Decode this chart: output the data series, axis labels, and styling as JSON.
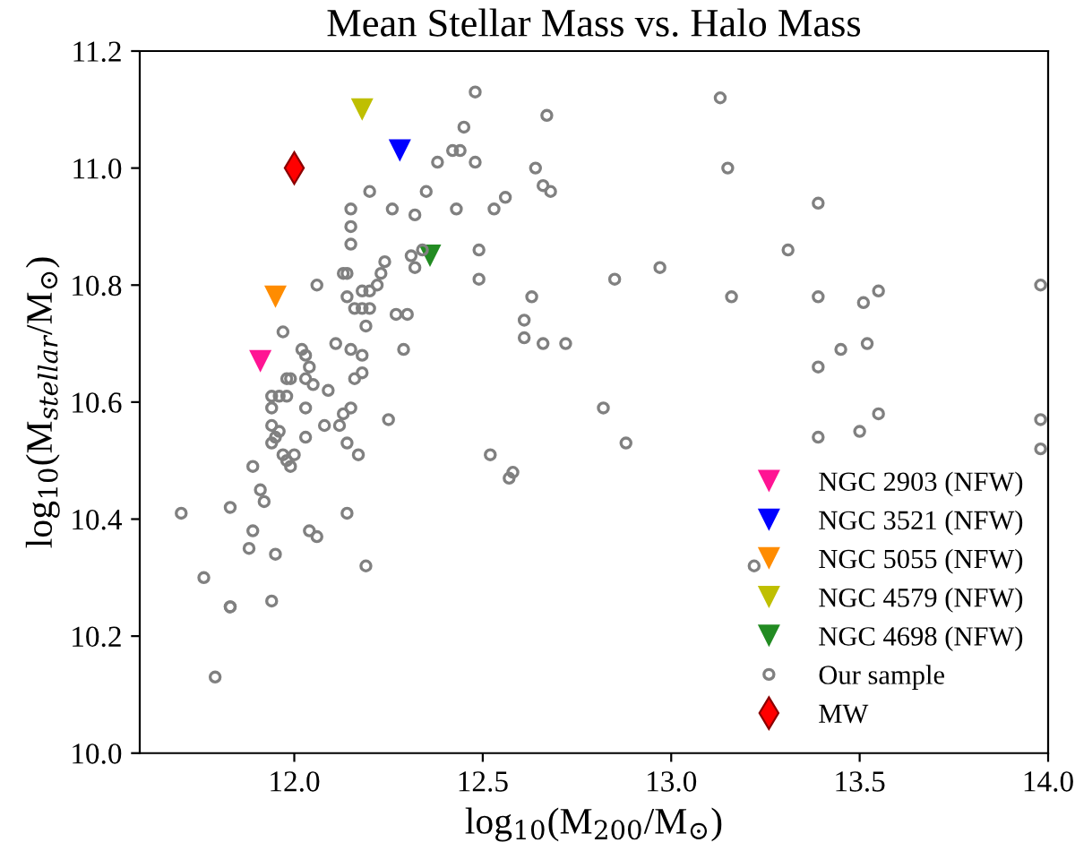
{
  "chart_data": {
    "type": "scatter",
    "title": "Mean Stellar Mass vs. Halo Mass",
    "xlabel": "log$_{10}$(M$_{200}$/M$_{⊙}$)",
    "ylabel": "log$_{10}$(M$_{stellar}$/M$_{⊙}$)",
    "xlim": [
      11.59,
      14.0
    ],
    "ylim": [
      10.0,
      11.2
    ],
    "xticks": [
      {
        "value": 12.0,
        "label": "12.0"
      },
      {
        "value": 12.5,
        "label": "12.5"
      },
      {
        "value": 13.0,
        "label": "13.0"
      },
      {
        "value": 13.5,
        "label": "13.5"
      },
      {
        "value": 14.0,
        "label": "14.0"
      }
    ],
    "yticks": [
      {
        "value": 10.0,
        "label": "10.0"
      },
      {
        "value": 10.2,
        "label": "10.2"
      },
      {
        "value": 10.4,
        "label": "10.4"
      },
      {
        "value": 10.6,
        "label": "10.6"
      },
      {
        "value": 10.8,
        "label": "10.8"
      },
      {
        "value": 11.0,
        "label": "11.0"
      },
      {
        "value": 11.2,
        "label": "11.2"
      }
    ],
    "grid": false,
    "legend": "bottom right",
    "series": [
      {
        "name": "NGC 2903 (NFW)",
        "color": "#ff1493",
        "marker": "triangle",
        "x": [
          11.91
        ],
        "values": [
          10.67
        ]
      },
      {
        "name": "NGC 3521 (NFW)",
        "color": "#0000ff",
        "marker": "triangle",
        "x": [
          12.28
        ],
        "values": [
          11.03
        ]
      },
      {
        "name": "NGC 5055 (NFW)",
        "color": "#ff8c00",
        "marker": "triangle",
        "x": [
          11.95
        ],
        "values": [
          10.78
        ]
      },
      {
        "name": "NGC 4579 (NFW)",
        "color": "#bfbf00",
        "marker": "triangle",
        "x": [
          12.18
        ],
        "values": [
          11.1
        ]
      },
      {
        "name": "NGC 4698 (NFW)",
        "color": "#228b22",
        "marker": "triangle",
        "x": [
          12.36
        ],
        "values": [
          10.85
        ]
      },
      {
        "name": "Our sample",
        "color": "#808080",
        "marker": "circle",
        "x": [
          12.45,
          12.38,
          12.42,
          12.44,
          12.2,
          12.35,
          12.15,
          12.26,
          12.32,
          12.43,
          12.15,
          12.15,
          12.24,
          12.31,
          12.34,
          12.32,
          12.13,
          12.14,
          12.23,
          12.22,
          12.06,
          12.2,
          12.18,
          12.14,
          12.16,
          12.18,
          12.2,
          12.27,
          12.3,
          12.19,
          11.97,
          12.29,
          12.11,
          12.02,
          12.03,
          12.15,
          12.18,
          12.04,
          12.18,
          11.98,
          11.99,
          12.03,
          12.05,
          12.16,
          12.09,
          11.94,
          11.96,
          11.98,
          11.94,
          12.03,
          12.15,
          12.13,
          12.25,
          12.08,
          12.12,
          11.94,
          11.96,
          11.95,
          11.94,
          12.03,
          12.14,
          11.97,
          12.0,
          11.98,
          11.99,
          12.17,
          11.89,
          11.91,
          11.92,
          11.7,
          11.83,
          12.14,
          11.89,
          11.88,
          12.04,
          12.06,
          11.95,
          12.19,
          11.76,
          11.83,
          11.83,
          11.94,
          11.79,
          12.48,
          12.67,
          12.48,
          12.64,
          12.66,
          12.68,
          12.56,
          12.53,
          12.49,
          12.49,
          12.63,
          12.61,
          12.61,
          12.66,
          12.72,
          12.85,
          12.97,
          13.13,
          13.15,
          13.31,
          13.16,
          12.82,
          12.88,
          12.52,
          12.58,
          12.57,
          13.22,
          13.39,
          13.39,
          13.51,
          13.55,
          13.98,
          13.45,
          13.52,
          13.39,
          13.55,
          13.5,
          13.39,
          13.98,
          13.98
        ],
        "values": [
          11.07,
          11.01,
          11.03,
          11.03,
          10.96,
          10.96,
          10.93,
          10.93,
          10.92,
          10.93,
          10.9,
          10.87,
          10.84,
          10.85,
          10.86,
          10.83,
          10.82,
          10.82,
          10.82,
          10.8,
          10.8,
          10.79,
          10.79,
          10.78,
          10.76,
          10.76,
          10.76,
          10.75,
          10.75,
          10.73,
          10.72,
          10.69,
          10.7,
          10.69,
          10.68,
          10.69,
          10.68,
          10.66,
          10.65,
          10.64,
          10.64,
          10.64,
          10.63,
          10.64,
          10.62,
          10.61,
          10.61,
          10.61,
          10.59,
          10.59,
          10.59,
          10.58,
          10.57,
          10.56,
          10.56,
          10.56,
          10.55,
          10.54,
          10.53,
          10.54,
          10.53,
          10.51,
          10.51,
          10.5,
          10.49,
          10.51,
          10.49,
          10.45,
          10.43,
          10.41,
          10.42,
          10.41,
          10.38,
          10.35,
          10.38,
          10.37,
          10.34,
          10.32,
          10.3,
          10.25,
          10.25,
          10.26,
          10.13,
          11.13,
          11.09,
          11.01,
          11.0,
          10.97,
          10.96,
          10.95,
          10.93,
          10.86,
          10.81,
          10.78,
          10.74,
          10.71,
          10.7,
          10.7,
          10.81,
          10.83,
          11.12,
          11.0,
          10.86,
          10.78,
          10.59,
          10.53,
          10.51,
          10.48,
          10.47,
          10.32,
          10.94,
          10.78,
          10.77,
          10.79,
          10.8,
          10.69,
          10.7,
          10.66,
          10.58,
          10.55,
          10.54,
          10.57,
          10.52
        ]
      },
      {
        "name": "MW",
        "color": "#ff0000",
        "marker": "diamond",
        "x": [
          12.0
        ],
        "values": [
          11.0
        ]
      }
    ]
  }
}
